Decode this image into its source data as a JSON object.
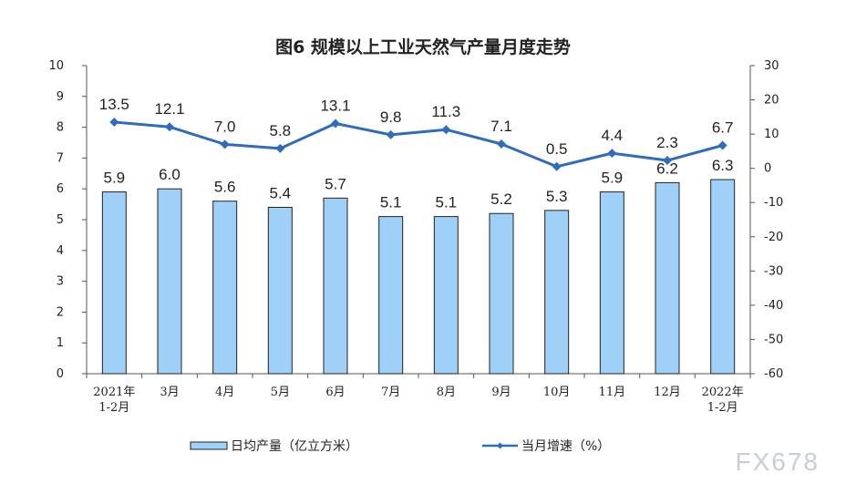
{
  "chart_data": {
    "type": "bar",
    "title": "图6  规模以上工业天然气产量月度走势",
    "categories": [
      [
        "2021年",
        "1-2月"
      ],
      [
        "3月"
      ],
      [
        "4月"
      ],
      [
        "5月"
      ],
      [
        "6月"
      ],
      [
        "7月"
      ],
      [
        "8月"
      ],
      [
        "9月"
      ],
      [
        "10月"
      ],
      [
        "11月"
      ],
      [
        "12月"
      ],
      [
        "2022年",
        "1-2月"
      ]
    ],
    "series": [
      {
        "name": "日均产量（亿立方米）",
        "type": "bar",
        "axis": "left",
        "values": [
          5.9,
          6.0,
          5.6,
          5.4,
          5.7,
          5.1,
          5.1,
          5.2,
          5.3,
          5.9,
          6.2,
          6.3
        ],
        "labels": [
          "5.9",
          "6.0",
          "5.6",
          "5.4",
          "5.7",
          "5.1",
          "5.1",
          "5.2",
          "5.3",
          "5.9",
          "6.2",
          "6.3"
        ]
      },
      {
        "name": "当月增速（%）",
        "type": "line",
        "axis": "right",
        "values": [
          13.5,
          12.1,
          7.0,
          5.8,
          13.1,
          9.8,
          11.3,
          7.1,
          0.5,
          4.4,
          2.3,
          6.7
        ],
        "labels": [
          "13.5",
          "12.1",
          "7.0",
          "5.8",
          "13.1",
          "9.8",
          "11.3",
          "7.1",
          "0.5",
          "4.4",
          "2.3",
          "6.7"
        ]
      }
    ],
    "ylim_left": [
      0,
      10
    ],
    "ylim_right": [
      -60,
      30
    ],
    "left_ticks": [
      "0",
      "1",
      "2",
      "3",
      "4",
      "5",
      "6",
      "7",
      "8",
      "9",
      "10"
    ],
    "right_ticks": [
      "-60",
      "-50",
      "-40",
      "-30",
      "-20",
      "-10",
      "0",
      "10",
      "20",
      "30"
    ],
    "grid": false,
    "legend_position": "bottom",
    "colors": {
      "bar_fill": "#9fd0f7",
      "bar_edge": "#222222",
      "line": "#2f6cc0",
      "axis": "#555555"
    }
  },
  "watermark": "FX678"
}
